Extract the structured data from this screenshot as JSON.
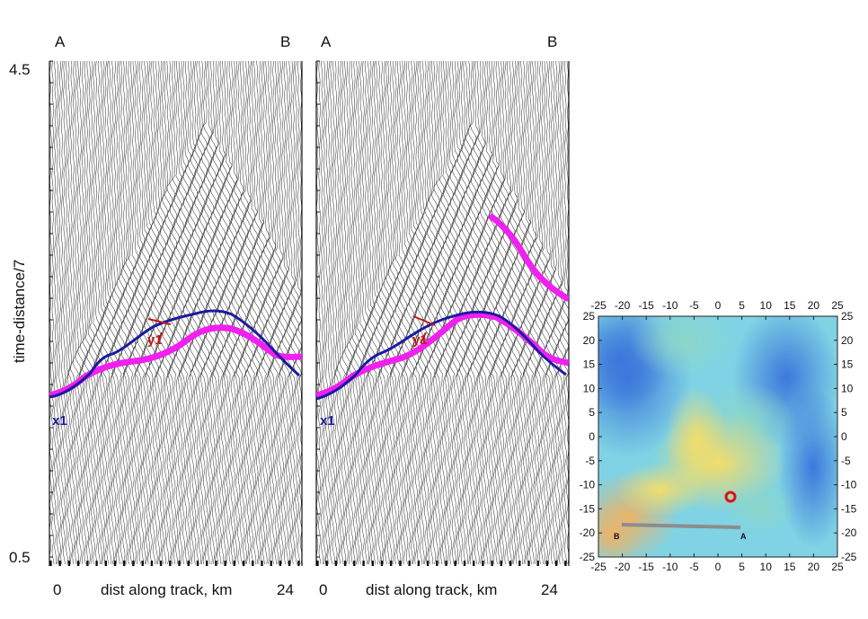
{
  "panels": [
    {
      "label_left": "A",
      "label_right": "B",
      "x_start": "0",
      "x_end": "24",
      "x_title": "dist along track, km",
      "curve_labels": {
        "blue": "x1",
        "red": "y1"
      }
    },
    {
      "label_left": "A",
      "label_right": "B",
      "x_start": "0",
      "x_end": "24",
      "x_title": "dist along track, km",
      "curve_labels": {
        "blue": "x1",
        "red": "y1"
      }
    }
  ],
  "y_axis": {
    "title": "time-distance/7",
    "top_tick": "4.5",
    "bottom_tick": "0.5"
  },
  "map": {
    "x_ticks": [
      "-25",
      "-20",
      "-15",
      "-10",
      "-5",
      "0",
      "5",
      "10",
      "15",
      "20",
      "25"
    ],
    "y_ticks": [
      "25",
      "20",
      "15",
      "10",
      "5",
      "0",
      "-5",
      "-10",
      "-15",
      "-20",
      "-25"
    ],
    "track_label_a": "A",
    "track_label_b": "B",
    "track_color": "#8c8c8c",
    "marker_color": "#e01010"
  },
  "colors": {
    "magenta": "#f020f0",
    "blue": "#1a1aa0",
    "red": "#c01818"
  }
}
